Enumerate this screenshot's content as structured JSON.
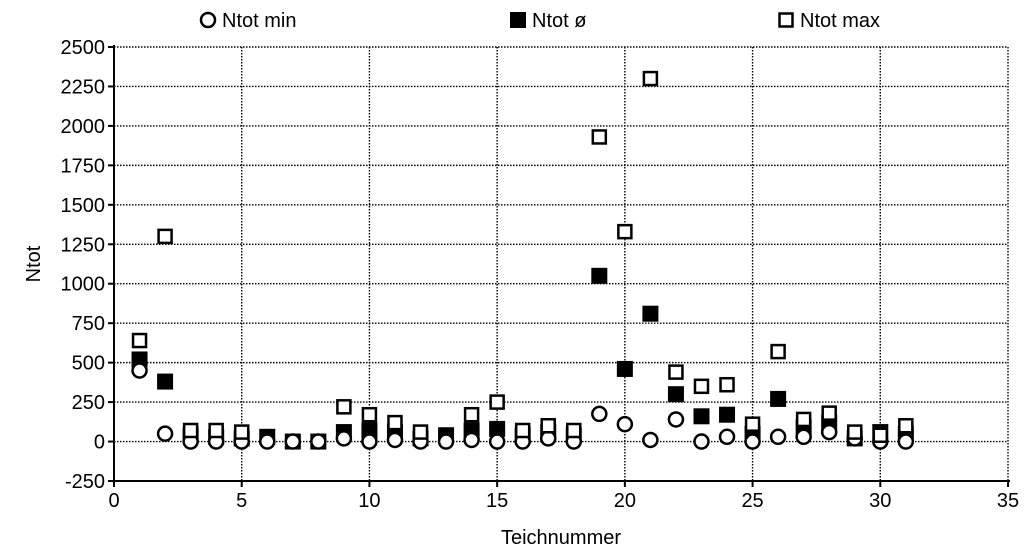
{
  "chart_data": {
    "type": "scatter",
    "title": "",
    "xlabel": "Teichnummer",
    "ylabel": "Ntot",
    "xlim": [
      0,
      35
    ],
    "ylim": [
      -250,
      2500
    ],
    "xticks": [
      0,
      5,
      10,
      15,
      20,
      25,
      30,
      35
    ],
    "yticks": [
      -250,
      0,
      250,
      500,
      750,
      1000,
      1250,
      1500,
      1750,
      2000,
      2250,
      2500
    ],
    "grid": true,
    "legend_position": "top",
    "series": [
      {
        "name": "Ntot min",
        "marker": "open-circle",
        "points": [
          [
            1,
            450
          ],
          [
            2,
            50
          ],
          [
            3,
            0
          ],
          [
            4,
            0
          ],
          [
            5,
            0
          ],
          [
            6,
            0
          ],
          [
            7,
            0
          ],
          [
            8,
            0
          ],
          [
            9,
            20
          ],
          [
            10,
            0
          ],
          [
            11,
            10
          ],
          [
            12,
            0
          ],
          [
            13,
            0
          ],
          [
            14,
            10
          ],
          [
            15,
            0
          ],
          [
            16,
            0
          ],
          [
            17,
            20
          ],
          [
            18,
            0
          ],
          [
            19,
            175
          ],
          [
            20,
            110
          ],
          [
            21,
            10
          ],
          [
            22,
            140
          ],
          [
            23,
            0
          ],
          [
            24,
            30
          ],
          [
            25,
            0
          ],
          [
            26,
            30
          ],
          [
            27,
            30
          ],
          [
            28,
            60
          ],
          [
            29,
            20
          ],
          [
            30,
            0
          ],
          [
            31,
            0
          ]
        ]
      },
      {
        "name": "Ntot ø",
        "marker": "filled-square",
        "points": [
          [
            1,
            520
          ],
          [
            2,
            380
          ],
          [
            3,
            40
          ],
          [
            4,
            30
          ],
          [
            5,
            20
          ],
          [
            6,
            30
          ],
          [
            7,
            0
          ],
          [
            8,
            0
          ],
          [
            9,
            60
          ],
          [
            10,
            70
          ],
          [
            11,
            60
          ],
          [
            12,
            20
          ],
          [
            13,
            40
          ],
          [
            14,
            70
          ],
          [
            15,
            80
          ],
          [
            16,
            40
          ],
          [
            17,
            60
          ],
          [
            18,
            40
          ],
          [
            19,
            1050
          ],
          [
            20,
            460
          ],
          [
            21,
            810
          ],
          [
            22,
            300
          ],
          [
            23,
            160
          ],
          [
            24,
            170
          ],
          [
            25,
            50
          ],
          [
            26,
            270
          ],
          [
            27,
            90
          ],
          [
            28,
            120
          ],
          [
            29,
            20
          ],
          [
            30,
            60
          ],
          [
            31,
            50
          ]
        ]
      },
      {
        "name": "Ntot max",
        "marker": "open-square",
        "points": [
          [
            1,
            640
          ],
          [
            2,
            1300
          ],
          [
            3,
            70
          ],
          [
            4,
            70
          ],
          [
            5,
            60
          ],
          [
            9,
            220
          ],
          [
            10,
            170
          ],
          [
            11,
            120
          ],
          [
            12,
            60
          ],
          [
            14,
            170
          ],
          [
            15,
            250
          ],
          [
            16,
            70
          ],
          [
            17,
            100
          ],
          [
            18,
            70
          ],
          [
            19,
            1930
          ],
          [
            20,
            1330
          ],
          [
            21,
            2300
          ],
          [
            22,
            440
          ],
          [
            23,
            350
          ],
          [
            24,
            360
          ],
          [
            25,
            110
          ],
          [
            26,
            570
          ],
          [
            27,
            140
          ],
          [
            28,
            180
          ],
          [
            29,
            60
          ],
          [
            30,
            40
          ],
          [
            31,
            100
          ]
        ]
      }
    ]
  }
}
